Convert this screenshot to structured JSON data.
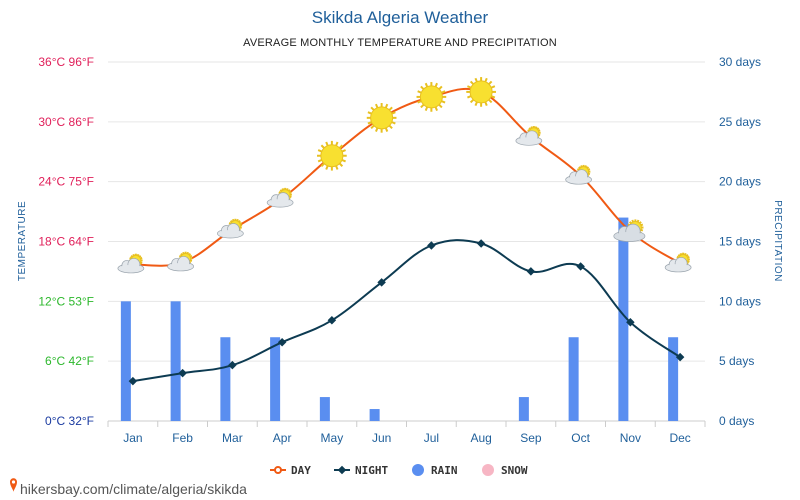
{
  "page": {
    "title": "Skikda Algeria Weather",
    "subtitle": "AVERAGE MONTHLY TEMPERATURE AND PRECIPITATION",
    "source": "hikersbay.com/climate/algeria/skikda"
  },
  "colors": {
    "day": "#f05a14",
    "night": "#0d3b52",
    "rain": "#5a8ef0",
    "snow": "#f7b6c4",
    "axis_left_high": "#e0205a",
    "axis_left_mid": "#2db82d",
    "axis_left_low": "#1a3aa0",
    "axis_right": "#1f5f9a",
    "grid": "#e6e6e6",
    "sun": "#f8e030"
  },
  "chart_data": {
    "type": "line",
    "categories": [
      "Jan",
      "Feb",
      "Mar",
      "Apr",
      "May",
      "Jun",
      "Jul",
      "Aug",
      "Sep",
      "Oct",
      "Nov",
      "Dec"
    ],
    "y_left": {
      "label": "TEMPERATURE",
      "range": [
        0,
        36
      ],
      "ticks": [
        {
          "value": 0,
          "label": "0°C 32°F",
          "color": "#1a3aa0"
        },
        {
          "value": 6,
          "label": "6°C 42°F",
          "color": "#2db82d"
        },
        {
          "value": 12,
          "label": "12°C 53°F",
          "color": "#2db82d"
        },
        {
          "value": 18,
          "label": "18°C 64°F",
          "color": "#e0205a"
        },
        {
          "value": 24,
          "label": "24°C 75°F",
          "color": "#e0205a"
        },
        {
          "value": 30,
          "label": "30°C 86°F",
          "color": "#e0205a"
        },
        {
          "value": 36,
          "label": "36°C 96°F",
          "color": "#e0205a"
        }
      ]
    },
    "y_right": {
      "label": "PRECIPITATION",
      "range": [
        0,
        30
      ],
      "ticks": [
        {
          "value": 0,
          "label": "0 days"
        },
        {
          "value": 5,
          "label": "5 days"
        },
        {
          "value": 10,
          "label": "10 days"
        },
        {
          "value": 15,
          "label": "15 days"
        },
        {
          "value": 20,
          "label": "20 days"
        },
        {
          "value": 25,
          "label": "25 days"
        },
        {
          "value": 30,
          "label": "30 days"
        }
      ]
    },
    "series": [
      {
        "name": "DAY",
        "kind": "line",
        "axis": "left",
        "color": "#f05a14",
        "values": [
          15.7,
          15.9,
          19.2,
          22.3,
          26.6,
          30.4,
          32.5,
          33.0,
          28.5,
          24.6,
          19.0,
          15.8
        ]
      },
      {
        "name": "NIGHT",
        "kind": "line",
        "axis": "left",
        "color": "#0d3b52",
        "values": [
          4.0,
          4.8,
          5.6,
          7.9,
          10.1,
          13.9,
          17.6,
          17.8,
          15.0,
          15.5,
          9.9,
          6.4
        ]
      },
      {
        "name": "RAIN",
        "kind": "bar",
        "axis": "right",
        "color": "#5a8ef0",
        "values": [
          10,
          10,
          7,
          7,
          2,
          1,
          0,
          0,
          2,
          7,
          17,
          7
        ]
      },
      {
        "name": "SNOW",
        "kind": "bar",
        "axis": "right",
        "color": "#f7b6c4",
        "values": [
          0,
          0,
          0,
          0,
          0,
          0,
          0,
          0,
          0,
          0,
          0,
          0
        ]
      }
    ],
    "weather_icons": [
      "partly-cloudy-icon",
      "partly-cloudy-icon",
      "partly-cloudy-icon",
      "partly-cloudy-icon",
      "sun-icon",
      "sun-icon",
      "sun-icon",
      "sun-icon",
      "partly-cloudy-icon",
      "partly-cloudy-icon",
      "cloudy-sun-icon",
      "partly-cloudy-icon"
    ],
    "grid": true,
    "legend_position": "bottom-center"
  }
}
